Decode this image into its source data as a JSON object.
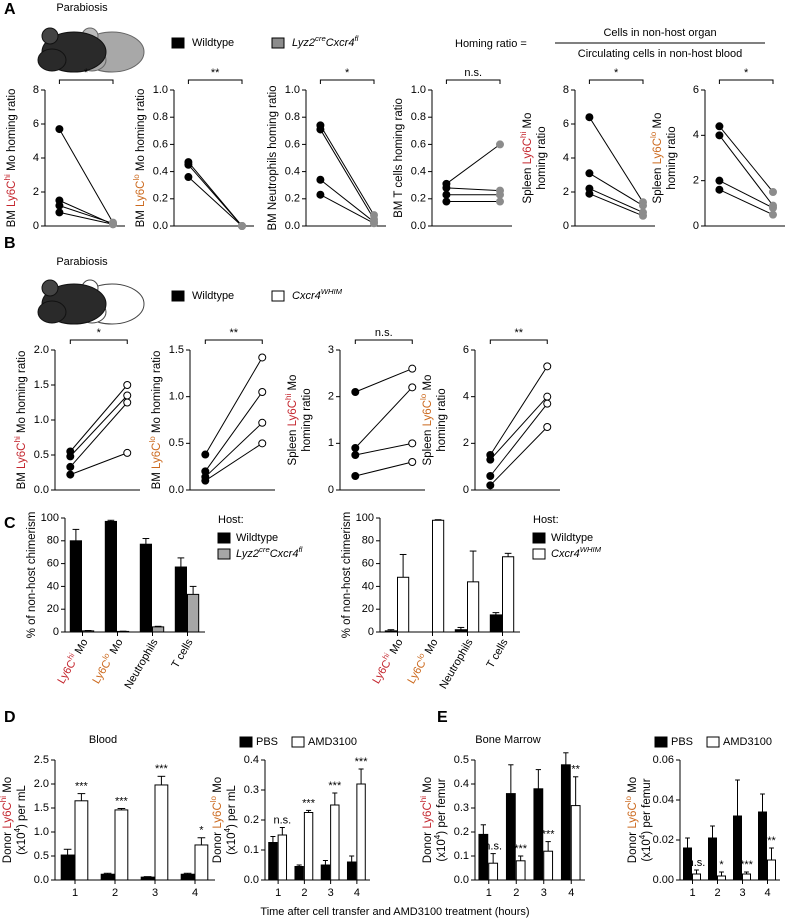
{
  "figure": {
    "panel_labels": [
      "A",
      "B",
      "C",
      "D",
      "E"
    ],
    "parabiosis": [
      "Parabiosis",
      "Parabiosis"
    ],
    "homing_ratio": {
      "label": "Homing ratio =",
      "numerator": "Cells in non-host organ",
      "denominator": "Circulating cells in non-host blood"
    },
    "x_label": "Time after cell transfer and AMD3100 treatment (hours)"
  },
  "chart_data": [
    {
      "type": "paired",
      "ylabel": [
        [
          {
            "text": "BM "
          },
          {
            "text": "Ly6C",
            "color": "#c4262e"
          },
          {
            "text": "hi",
            "color": "#c4262e",
            "sup": true
          },
          {
            "text": " Mo homing ratio"
          }
        ]
      ],
      "ylim": [
        0,
        8
      ],
      "yticks": [
        0,
        2,
        4,
        6,
        8
      ],
      "significance": "*",
      "series": [
        {
          "name": "Wildtype",
          "color": "#000000",
          "values": [
            5.7,
            1.5,
            1.2,
            0.8
          ]
        },
        {
          "name": [
            {
              "text": "Lyz2",
              "italic": true
            },
            {
              "text": "cre",
              "italic": true,
              "sup": true
            },
            {
              "text": "Cxcr4",
              "italic": true
            },
            {
              "text": "fl",
              "italic": true,
              "sup": true
            }
          ],
          "color": "#8c8c8c",
          "values": [
            0.2,
            0.1,
            0.15,
            0.1
          ]
        }
      ]
    },
    {
      "type": "paired",
      "ylabel": [
        [
          {
            "text": "BM "
          },
          {
            "text": "Ly6C",
            "color": "#cc6a1f"
          },
          {
            "text": "lo",
            "color": "#cc6a1f",
            "sup": true
          },
          {
            "text": " Mo homing ratio"
          }
        ]
      ],
      "ylim": [
        0,
        1
      ],
      "yticks": [
        {
          "value": 0,
          "label": "0.0"
        },
        0.2,
        0.4,
        0.6,
        0.8,
        {
          "value": 1,
          "label": "1.0"
        }
      ],
      "significance": "**",
      "series": [
        {
          "color": "#000000",
          "values": [
            0.47,
            0.45,
            0.36
          ]
        },
        {
          "color": "#8c8c8c",
          "values": [
            0.0,
            0.0,
            0.0
          ]
        }
      ]
    },
    {
      "type": "paired",
      "ylabel": [
        "BM Neutrophils homing ratio"
      ],
      "ylim": [
        0,
        1
      ],
      "yticks": [
        {
          "value": 0,
          "label": "0.0"
        },
        0.2,
        0.4,
        0.6,
        0.8,
        {
          "value": 1,
          "label": "1.0"
        }
      ],
      "significance": "*",
      "series": [
        {
          "color": "#000000",
          "values": [
            0.74,
            0.71,
            0.34,
            0.23
          ]
        },
        {
          "color": "#8c8c8c",
          "values": [
            0.08,
            0.05,
            0.03,
            0.02
          ]
        }
      ]
    },
    {
      "type": "paired",
      "ylabel": [
        "BM T cells homing ratio"
      ],
      "ylim": [
        0,
        1
      ],
      "yticks": [
        {
          "value": 0,
          "label": "0.0"
        },
        0.2,
        0.4,
        0.6,
        0.8,
        {
          "value": 1,
          "label": "1.0"
        }
      ],
      "significance": "n.s.",
      "series": [
        {
          "color": "#000000",
          "values": [
            0.31,
            0.28,
            0.23,
            0.18
          ]
        },
        {
          "color": "#8c8c8c",
          "values": [
            0.6,
            0.26,
            0.23,
            0.18
          ]
        }
      ]
    },
    {
      "type": "paired",
      "ylabel": [
        [
          {
            "text": "Spleen "
          },
          {
            "text": "Ly6C",
            "color": "#c4262e"
          },
          {
            "text": "hi",
            "color": "#c4262e",
            "sup": true
          },
          {
            "text": " Mo"
          }
        ],
        "homing ratio"
      ],
      "ylim": [
        0,
        8
      ],
      "yticks": [
        0,
        2,
        4,
        6,
        8
      ],
      "significance": "*",
      "series": [
        {
          "color": "#000000",
          "values": [
            6.4,
            3.1,
            2.2,
            1.9
          ]
        },
        {
          "color": "#8c8c8c",
          "values": [
            1.4,
            1.2,
            0.8,
            0.6
          ]
        }
      ]
    },
    {
      "type": "paired",
      "ylabel": [
        [
          {
            "text": "Spleen "
          },
          {
            "text": "Ly6C",
            "color": "#cc6a1f"
          },
          {
            "text": "lo",
            "color": "#cc6a1f",
            "sup": true
          },
          {
            "text": " Mo"
          }
        ],
        "homing ratio"
      ],
      "ylim": [
        0,
        6
      ],
      "yticks": [
        0,
        2,
        4,
        6
      ],
      "significance": "*",
      "series": [
        {
          "color": "#000000",
          "values": [
            4.4,
            4.0,
            2.0,
            1.6
          ]
        },
        {
          "color": "#8c8c8c",
          "values": [
            1.5,
            0.9,
            0.8,
            0.5
          ]
        }
      ]
    },
    {
      "type": "paired",
      "ylabel": [
        [
          {
            "text": "BM "
          },
          {
            "text": "Ly6C",
            "color": "#c4262e"
          },
          {
            "text": "hi",
            "color": "#c4262e",
            "sup": true
          },
          {
            "text": " Mo homing ratio"
          }
        ]
      ],
      "ylim": [
        0,
        2
      ],
      "yticks": [
        {
          "value": 0,
          "label": "0.0"
        },
        0.5,
        {
          "value": 1,
          "label": "1.0"
        },
        1.5,
        {
          "value": 2,
          "label": "2.0"
        }
      ],
      "significance": "*",
      "series": [
        {
          "name": "Wildtype",
          "color": "#000000",
          "values": [
            0.55,
            0.48,
            0.33,
            0.22
          ]
        },
        {
          "name": [
            {
              "text": "Cxcr4",
              "italic": true
            },
            {
              "text": "WHIM",
              "italic": true,
              "sup": true
            }
          ],
          "color": "#ffffff",
          "values": [
            1.5,
            1.35,
            1.25,
            0.53
          ]
        }
      ]
    },
    {
      "type": "paired",
      "ylabel": [
        [
          {
            "text": "BM "
          },
          {
            "text": "Ly6C",
            "color": "#cc6a1f"
          },
          {
            "text": "lo",
            "color": "#cc6a1f",
            "sup": true
          },
          {
            "text": " Mo homing ratio"
          }
        ]
      ],
      "ylim": [
        0,
        1.5
      ],
      "yticks": [
        {
          "value": 0,
          "label": "0.0"
        },
        0.5,
        {
          "value": 1,
          "label": "1.0"
        },
        1.5
      ],
      "significance": "**",
      "series": [
        {
          "color": "#000000",
          "values": [
            0.38,
            0.2,
            0.14,
            0.1
          ]
        },
        {
          "color": "#ffffff",
          "values": [
            1.42,
            1.05,
            0.72,
            0.5
          ]
        }
      ]
    },
    {
      "type": "paired",
      "ylabel": [
        [
          {
            "text": "Spleen "
          },
          {
            "text": "Ly6C",
            "color": "#c4262e"
          },
          {
            "text": "hi",
            "color": "#c4262e",
            "sup": true
          },
          {
            "text": " Mo"
          }
        ],
        "homing ratio"
      ],
      "ylim": [
        0,
        3
      ],
      "yticks": [
        0,
        1,
        2,
        3
      ],
      "significance": "n.s.",
      "series": [
        {
          "color": "#000000",
          "values": [
            2.1,
            0.9,
            0.75,
            0.3
          ]
        },
        {
          "color": "#ffffff",
          "values": [
            2.6,
            2.2,
            1.0,
            0.6
          ]
        }
      ]
    },
    {
      "type": "paired",
      "ylabel": [
        [
          {
            "text": "Spleen "
          },
          {
            "text": "Ly6C",
            "color": "#cc6a1f"
          },
          {
            "text": "lo",
            "color": "#cc6a1f",
            "sup": true
          },
          {
            "text": " Mo"
          }
        ],
        "homing ratio"
      ],
      "ylim": [
        0,
        6
      ],
      "yticks": [
        0,
        2,
        4,
        6
      ],
      "significance": "**",
      "series": [
        {
          "color": "#000000",
          "values": [
            1.5,
            1.3,
            0.6,
            0.2
          ]
        },
        {
          "color": "#ffffff",
          "values": [
            5.3,
            4.0,
            3.7,
            2.7
          ]
        }
      ]
    },
    {
      "type": "bar",
      "ylabel": [
        "% of non-host chimerism"
      ],
      "legend_title": "Host:",
      "categories": [
        [
          {
            "text": "Ly6C",
            "color": "#c4262e"
          },
          {
            "text": "hi",
            "color": "#c4262e",
            "sup": true
          },
          {
            "text": " Mo"
          }
        ],
        [
          {
            "text": "Ly6C",
            "color": "#cc6a1f"
          },
          {
            "text": "lo",
            "color": "#cc6a1f",
            "sup": true
          },
          {
            "text": " Mo"
          }
        ],
        "Neutrophils",
        "T cells"
      ],
      "ylim": [
        0,
        100
      ],
      "yticks": [
        0,
        20,
        40,
        60,
        80,
        100
      ],
      "series": [
        {
          "name": "Wildtype",
          "color": "#000000",
          "values": [
            80,
            97,
            77,
            57
          ],
          "errors": [
            10,
            1,
            5,
            8
          ]
        },
        {
          "name": [
            {
              "text": "Lyz2",
              "italic": true
            },
            {
              "text": "cre",
              "italic": true,
              "sup": true
            },
            {
              "text": "Cxcr4",
              "italic": true
            },
            {
              "text": "fl",
              "italic": true,
              "sup": true
            }
          ],
          "color": "#a6a6a6",
          "values": [
            1,
            0.5,
            4.5,
            33
          ],
          "errors": [
            0.3,
            0.2,
            0.5,
            7
          ]
        }
      ]
    },
    {
      "type": "bar",
      "ylabel": [
        "% of non-host chimerism"
      ],
      "legend_title": "Host:",
      "categories": [
        [
          {
            "text": "Ly6C",
            "color": "#c4262e"
          },
          {
            "text": "hi",
            "color": "#c4262e",
            "sup": true
          },
          {
            "text": " Mo"
          }
        ],
        [
          {
            "text": "Ly6C",
            "color": "#cc6a1f"
          },
          {
            "text": "lo",
            "color": "#cc6a1f",
            "sup": true
          },
          {
            "text": " Mo"
          }
        ],
        "Neutrophils",
        "T cells"
      ],
      "ylim": [
        0,
        100
      ],
      "yticks": [
        0,
        20,
        40,
        60,
        80,
        100
      ],
      "series": [
        {
          "name": "Wildtype",
          "color": "#000000",
          "values": [
            1,
            0,
            2,
            15
          ],
          "errors": [
            1,
            0,
            2,
            2
          ]
        },
        {
          "name": [
            {
              "text": "Cxcr4",
              "italic": true
            },
            {
              "text": "WHIM",
              "italic": true,
              "sup": true
            }
          ],
          "color": "#ffffff",
          "values": [
            48,
            98,
            44,
            66
          ],
          "errors": [
            20,
            0.5,
            27,
            3
          ]
        }
      ]
    },
    {
      "type": "bar",
      "title": "Blood",
      "ylabel": [
        [
          {
            "text": "Donor "
          },
          {
            "text": "Ly6C",
            "color": "#c4262e"
          },
          {
            "text": "hi",
            "color": "#c4262e",
            "sup": true
          },
          {
            "text": " Mo"
          }
        ],
        [
          {
            "text": "(x10"
          },
          {
            "text": "4",
            "sup": true
          },
          {
            "text": ") per mL"
          }
        ]
      ],
      "categories": [
        "1",
        "2",
        "3",
        "4"
      ],
      "ylim": [
        0,
        2.5
      ],
      "yticks": [
        {
          "value": 0,
          "label": "0.0"
        },
        0.5,
        {
          "value": 1,
          "label": "1.0"
        },
        1.5,
        {
          "value": 2,
          "label": "2.0"
        },
        2.5
      ],
      "significance": [
        "***",
        "***",
        "***",
        "*"
      ],
      "series": [
        {
          "color": "#000000",
          "values": [
            0.52,
            0.12,
            0.06,
            0.12
          ],
          "errors": [
            0.12,
            0.02,
            0.01,
            0.02
          ]
        },
        {
          "color": "#ffffff",
          "values": [
            1.65,
            1.46,
            1.98,
            0.73
          ],
          "errors": [
            0.15,
            0.03,
            0.18,
            0.15
          ]
        }
      ]
    },
    {
      "type": "bar",
      "ylabel": [
        [
          {
            "text": "Donor "
          },
          {
            "text": "Ly6C",
            "color": "#cc6a1f"
          },
          {
            "text": "lo",
            "color": "#cc6a1f",
            "sup": true
          },
          {
            "text": " Mo"
          }
        ],
        [
          {
            "text": "(x10"
          },
          {
            "text": "4",
            "sup": true
          },
          {
            "text": ") per mL"
          }
        ]
      ],
      "categories": [
        "1",
        "2",
        "3",
        "4"
      ],
      "ylim": [
        0,
        0.4
      ],
      "yticks": [
        {
          "value": 0,
          "label": "0.0"
        },
        0.1,
        0.2,
        0.3,
        0.4
      ],
      "significance": [
        "n.s.",
        "***",
        "***",
        "***"
      ],
      "series": [
        {
          "name": "PBS",
          "color": "#000000",
          "values": [
            0.125,
            0.045,
            0.05,
            0.06
          ],
          "errors": [
            0.02,
            0.005,
            0.015,
            0.02
          ]
        },
        {
          "name": "AMD3100",
          "color": "#ffffff",
          "values": [
            0.15,
            0.225,
            0.25,
            0.32
          ],
          "errors": [
            0.025,
            0.007,
            0.04,
            0.05
          ]
        }
      ]
    },
    {
      "type": "bar",
      "title": "Bone Marrow",
      "ylabel": [
        [
          {
            "text": "Donor "
          },
          {
            "text": "Ly6C",
            "color": "#c4262e"
          },
          {
            "text": "hi",
            "color": "#c4262e",
            "sup": true
          },
          {
            "text": " Mo"
          }
        ],
        [
          {
            "text": "(x10"
          },
          {
            "text": "4",
            "sup": true
          },
          {
            "text": ") per femur"
          }
        ]
      ],
      "categories": [
        "1",
        "2",
        "3",
        "4"
      ],
      "ylim": [
        0,
        0.5
      ],
      "yticks": [
        {
          "value": 0,
          "label": "0.0"
        },
        0.1,
        0.2,
        0.3,
        0.4,
        0.5
      ],
      "significance": [
        "n.s.",
        "***",
        "***",
        "**"
      ],
      "series": [
        {
          "color": "#000000",
          "values": [
            0.19,
            0.36,
            0.38,
            0.48
          ],
          "errors": [
            0.04,
            0.12,
            0.08,
            0.05
          ]
        },
        {
          "color": "#ffffff",
          "values": [
            0.07,
            0.08,
            0.12,
            0.31
          ],
          "errors": [
            0.04,
            0.02,
            0.04,
            0.12
          ]
        }
      ]
    },
    {
      "type": "bar",
      "ylabel": [
        [
          {
            "text": "Donor "
          },
          {
            "text": "Ly6C",
            "color": "#cc6a1f"
          },
          {
            "text": "lo",
            "color": "#cc6a1f",
            "sup": true
          },
          {
            "text": " Mo"
          }
        ],
        [
          {
            "text": "(x10"
          },
          {
            "text": "4",
            "sup": true
          },
          {
            "text": ") per femur"
          }
        ]
      ],
      "categories": [
        "1",
        "2",
        "3",
        "4"
      ],
      "ylim": [
        0,
        0.06
      ],
      "yticks": [
        {
          "value": 0,
          "label": "0.00"
        },
        0.02,
        0.04,
        0.06
      ],
      "significance": [
        "n.s.",
        "*",
        "***",
        "**"
      ],
      "series": [
        {
          "name": "PBS",
          "color": "#000000",
          "values": [
            0.016,
            0.021,
            0.032,
            0.034
          ],
          "errors": [
            0.005,
            0.006,
            0.018,
            0.009
          ]
        },
        {
          "name": "AMD3100",
          "color": "#ffffff",
          "values": [
            0.003,
            0.002,
            0.003,
            0.01
          ],
          "errors": [
            0.002,
            0.002,
            0.001,
            0.006
          ]
        }
      ]
    }
  ]
}
